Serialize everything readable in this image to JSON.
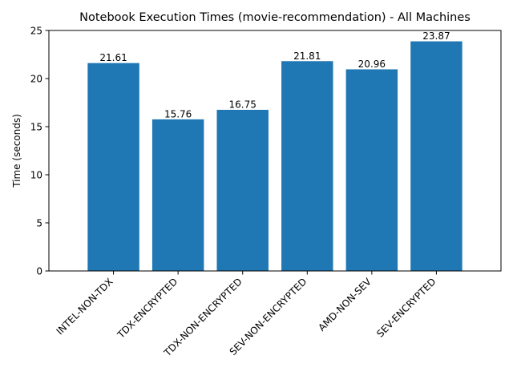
{
  "chart_data": {
    "type": "bar",
    "title": "Notebook Execution Times (movie-recommendation) - All Machines",
    "xlabel": "",
    "ylabel": "Time (seconds)",
    "categories": [
      "INTEL-NON-TDX",
      "TDX-ENCRYPTED",
      "TDX-NON-ENCRYPTED",
      "SEV-NON-ENCRYPTED",
      "AMD-NON-SEV",
      "SEV-ENCRYPTED"
    ],
    "values": [
      21.61,
      15.76,
      16.75,
      21.81,
      20.96,
      23.87
    ],
    "value_labels": [
      "21.61",
      "15.76",
      "16.75",
      "21.81",
      "20.96",
      "23.87"
    ],
    "ylim": [
      0,
      25
    ],
    "yticks": [
      0,
      5,
      10,
      15,
      20,
      25
    ],
    "ytick_labels": [
      "0",
      "5",
      "10",
      "15",
      "20",
      "25"
    ],
    "bar_color": "#1f77b4",
    "grid": false,
    "legend": "none"
  }
}
